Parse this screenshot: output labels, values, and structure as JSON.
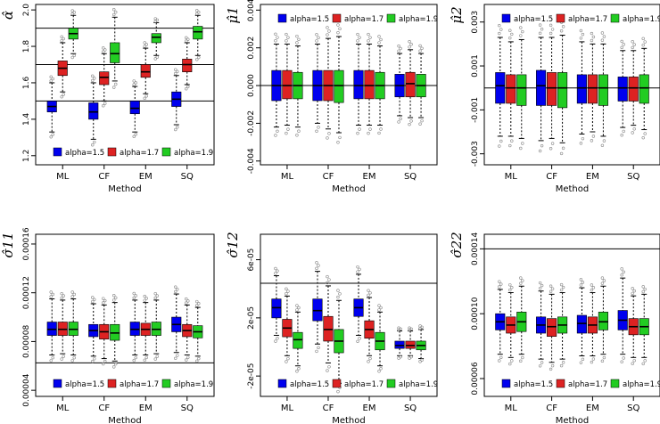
{
  "colors": {
    "s1": "#0000ee",
    "s2": "#dd2222",
    "s3": "#22cc22",
    "axis": "#000000",
    "whisker": "#000000",
    "outlier": "#888888"
  },
  "chart_data": [
    {
      "type": "box",
      "ylabel": "α̂",
      "xlabel": "Method",
      "categories": [
        "ML",
        "CF",
        "EM",
        "SQ"
      ],
      "yticks": [
        "1.2",
        "1.4",
        "1.6",
        "1.8",
        "2.0"
      ],
      "ylim": [
        1.15,
        2.03
      ],
      "hlines": [
        1.5,
        1.7,
        1.9
      ],
      "legend": [
        "alpha=1.5",
        "alpha=1.7",
        "alpha=1.9"
      ],
      "legend_position": "bottom",
      "series": [
        {
          "name": "alpha=1.5",
          "boxes": [
            [
              1.33,
              1.44,
              1.47,
              1.5,
              1.6
            ],
            [
              1.29,
              1.4,
              1.44,
              1.49,
              1.6
            ],
            [
              1.33,
              1.43,
              1.46,
              1.5,
              1.58
            ],
            [
              1.37,
              1.47,
              1.51,
              1.55,
              1.64
            ]
          ]
        },
        {
          "name": "alpha=1.7",
          "boxes": [
            [
              1.55,
              1.64,
              1.68,
              1.72,
              1.82
            ],
            [
              1.5,
              1.59,
              1.63,
              1.66,
              1.76
            ],
            [
              1.54,
              1.63,
              1.66,
              1.7,
              1.79
            ],
            [
              1.59,
              1.66,
              1.7,
              1.73,
              1.82
            ]
          ]
        },
        {
          "name": "alpha=1.9",
          "boxes": [
            [
              1.76,
              1.84,
              1.87,
              1.9,
              1.97
            ],
            [
              1.61,
              1.71,
              1.76,
              1.82,
              1.96
            ],
            [
              1.75,
              1.82,
              1.85,
              1.87,
              1.93
            ],
            [
              1.75,
              1.84,
              1.88,
              1.91,
              1.97
            ]
          ]
        }
      ]
    },
    {
      "type": "box",
      "ylabel": "μ̂1",
      "xlabel": "Method",
      "categories": [
        "ML",
        "CF",
        "EM",
        "SQ"
      ],
      "yticks": [
        "-0.004",
        "-0.002",
        "0.000",
        "0.002",
        "0.004"
      ],
      "ylim": [
        -0.0042,
        0.0043
      ],
      "hlines": [
        0.0
      ],
      "legend": [
        "alpha=1.5",
        "alpha=1.7",
        "alpha=1.9"
      ],
      "legend_position": "top",
      "series": [
        {
          "name": "alpha=1.5",
          "boxes": [
            [
              -0.0022,
              -0.0008,
              0.0,
              0.0008,
              0.0022
            ],
            [
              -0.002,
              -0.0008,
              0.0,
              0.0008,
              0.0022
            ],
            [
              -0.0021,
              -0.0007,
              0.0,
              0.0008,
              0.0022
            ],
            [
              -0.0016,
              -0.0006,
              0.0,
              0.0006,
              0.0017
            ]
          ]
        },
        {
          "name": "alpha=1.7",
          "boxes": [
            [
              -0.0021,
              -0.0007,
              0.0,
              0.0008,
              0.0022
            ],
            [
              -0.0023,
              -0.0008,
              0.0,
              0.0008,
              0.0025
            ],
            [
              -0.0021,
              -0.0007,
              0.0,
              0.0008,
              0.0022
            ],
            [
              -0.0017,
              -0.0006,
              0.0001,
              0.0007,
              0.0019
            ]
          ]
        },
        {
          "name": "alpha=1.9",
          "boxes": [
            [
              -0.0022,
              -0.0007,
              0.0,
              0.0007,
              0.0021
            ],
            [
              -0.0025,
              -0.0009,
              0.0,
              0.0008,
              0.0026
            ],
            [
              -0.0021,
              -0.0007,
              0.0,
              0.0007,
              0.0021
            ],
            [
              -0.0017,
              -0.0006,
              0.0,
              0.0006,
              0.0017
            ]
          ]
        }
      ]
    },
    {
      "type": "box",
      "ylabel": "μ̂2",
      "xlabel": "Method",
      "categories": [
        "ML",
        "CF",
        "EM",
        "SQ"
      ],
      "yticks": [
        "-0.003",
        "-0.001",
        "0.001",
        "0.003"
      ],
      "ylim": [
        -0.0035,
        0.0038
      ],
      "hlines": [
        0.0
      ],
      "legend": [
        "alpha=1.5",
        "alpha=1.7",
        "alpha=1.9"
      ],
      "legend_position": "top",
      "series": [
        {
          "name": "alpha=1.5",
          "boxes": [
            [
              -0.0022,
              -0.0007,
              0.0001,
              0.0007,
              0.0023
            ],
            [
              -0.0024,
              -0.0008,
              0.0001,
              0.0008,
              0.0023
            ],
            [
              -0.0021,
              -0.0007,
              0.0,
              0.0006,
              0.0021
            ],
            [
              -0.0018,
              -0.0006,
              0.0,
              0.0005,
              0.0017
            ]
          ]
        },
        {
          "name": "alpha=1.7",
          "boxes": [
            [
              -0.0022,
              -0.0007,
              0.0,
              0.0006,
              0.0021
            ],
            [
              -0.0023,
              -0.0008,
              0.0,
              0.0007,
              0.0023
            ],
            [
              -0.002,
              -0.0007,
              0.0,
              0.0006,
              0.002
            ],
            [
              -0.0017,
              -0.0006,
              0.0,
              0.0005,
              0.0017
            ]
          ]
        },
        {
          "name": "alpha=1.9",
          "boxes": [
            [
              -0.0023,
              -0.0008,
              0.0,
              0.0006,
              0.0022
            ],
            [
              -0.0025,
              -0.0009,
              0.0,
              0.0007,
              0.0024
            ],
            [
              -0.0022,
              -0.0008,
              0.0,
              0.0006,
              0.002
            ],
            [
              -0.0019,
              -0.0007,
              0.0,
              0.0006,
              0.0018
            ]
          ]
        }
      ]
    },
    {
      "type": "box",
      "ylabel": "σ̂11",
      "xlabel": "Method",
      "categories": [
        "ML",
        "CF",
        "EM",
        "SQ"
      ],
      "yticks": [
        "0.00004",
        "0.00008",
        "0.00012",
        "0.00016"
      ],
      "ylim": [
        3.5e-05,
        0.000168
      ],
      "hlines": [
        6.25e-05
      ],
      "legend": [
        "alpha=1.5",
        "alpha=1.7",
        "alpha=1.9"
      ],
      "legend_position": "bottom",
      "series": [
        {
          "name": "alpha=1.5",
          "boxes": [
            [
              6.9e-05,
              8.5e-05,
              9e-05,
              9.6e-05,
              0.000115
            ],
            [
              6.8e-05,
              8.4e-05,
              8.9e-05,
              9.4e-05,
              0.000111
            ],
            [
              6.9e-05,
              8.5e-05,
              9e-05,
              9.6e-05,
              0.000114
            ],
            [
              7.1e-05,
              8.8e-05,
              9.4e-05,
              0.0001,
              0.000119
            ]
          ]
        },
        {
          "name": "alpha=1.7",
          "boxes": [
            [
              7e-05,
              8.5e-05,
              9e-05,
              9.6e-05,
              0.000114
            ],
            [
              6.6e-05,
              8.2e-05,
              8.8e-05,
              9.4e-05,
              0.00011
            ],
            [
              6.9e-05,
              8.5e-05,
              9e-05,
              9.5e-05,
              0.000112
            ],
            [
              6.9e-05,
              8.4e-05,
              8.9e-05,
              9.4e-05,
              0.00011
            ]
          ]
        },
        {
          "name": "alpha=1.9",
          "boxes": [
            [
              6.9e-05,
              8.5e-05,
              9e-05,
              9.6e-05,
              0.000115
            ],
            [
              6.4e-05,
              8.1e-05,
              8.7e-05,
              9.4e-05,
              0.000112
            ],
            [
              7e-05,
              8.5e-05,
              9e-05,
              9.6e-05,
              0.000114
            ],
            [
              6.8e-05,
              8.3e-05,
              8.8e-05,
              9.3e-05,
              0.000108
            ]
          ]
        }
      ]
    },
    {
      "type": "box",
      "ylabel": "σ̂12",
      "xlabel": "Method",
      "categories": [
        "ML",
        "CF",
        "EM",
        "SQ"
      ],
      "yticks": [
        "-2e-05",
        "2e-05",
        "6e-05"
      ],
      "ylim": [
        -3.4e-05,
        7.75e-05
      ],
      "hlines": [
        4.38e-05
      ],
      "legend": [
        "alpha=1.5",
        "alpha=1.7",
        "alpha=1.9"
      ],
      "legend_position": "bottom",
      "series": [
        {
          "name": "alpha=1.5",
          "boxes": [
            [
              8e-06,
              2e-05,
              2.7e-05,
              3.3e-05,
              4.9e-05
            ],
            [
              2e-06,
              1.8e-05,
              2.5e-05,
              3.3e-05,
              5.2e-05
            ],
            [
              8e-06,
              2.1e-05,
              2.7e-05,
              3.3e-05,
              5e-05
            ],
            [
              -6e-06,
              -1e-06,
              1e-06,
              4e-06,
              1.1e-05
            ]
          ]
        },
        {
          "name": "alpha=1.7",
          "boxes": [
            [
              -6e-06,
              7e-06,
              1.3e-05,
              1.9e-05,
              3.5e-05
            ],
            [
              -1.1e-05,
              4e-06,
              1.2e-05,
              2.1e-05,
              4.2e-05
            ],
            [
              -6e-06,
              6e-06,
              1.2e-05,
              1.8e-05,
              3.4e-05
            ],
            [
              -6e-06,
              -1e-06,
              1e-06,
              4e-06,
              1.1e-05
            ]
          ]
        },
        {
          "name": "alpha=1.9",
          "boxes": [
            [
              -1.3e-05,
              -1e-06,
              5e-06,
              1e-05,
              2.4e-05
            ],
            [
              -2.5e-05,
              -4e-06,
              4e-06,
              1.2e-05,
              3.2e-05
            ],
            [
              -1.3e-05,
              -2e-06,
              4e-06,
              1e-05,
              2.4e-05
            ],
            [
              -8e-06,
              -2e-06,
              1e-06,
              4e-06,
              1.2e-05
            ]
          ]
        }
      ]
    },
    {
      "type": "box",
      "ylabel": "σ̂22",
      "xlabel": "Method",
      "categories": [
        "ML",
        "CF",
        "EM",
        "SQ"
      ],
      "yticks": [
        "0.00006",
        "0.00010",
        "0.00014"
      ],
      "ylim": [
        4.9e-05,
        0.000149
      ],
      "hlines": [
        0.00014
      ],
      "legend": [
        "alpha=1.5",
        "alpha=1.7",
        "alpha=1.9"
      ],
      "legend_position": "bottom",
      "series": [
        {
          "name": "alpha=1.5",
          "boxes": [
            [
              7.5e-05,
              9e-05,
              9.5e-05,
              0.0001,
              0.000115
            ],
            [
              7.2e-05,
              8.8e-05,
              9.3e-05,
              9.8e-05,
              0.000114
            ],
            [
              7.4e-05,
              8.8e-05,
              9.4e-05,
              9.9e-05,
              0.000116
            ],
            [
              7.5e-05,
              9e-05,
              9.6e-05,
              0.000102,
              0.000122
            ]
          ]
        },
        {
          "name": "alpha=1.7",
          "boxes": [
            [
              7.3e-05,
              8.8e-05,
              9.3e-05,
              9.8e-05,
              0.000113
            ],
            [
              7e-05,
              8.6e-05,
              9.2e-05,
              9.7e-05,
              0.000112
            ],
            [
              7.4e-05,
              8.8e-05,
              9.3e-05,
              9.8e-05,
              0.000113
            ],
            [
              7.3e-05,
              8.7e-05,
              9.2e-05,
              9.7e-05,
              0.000111
            ]
          ]
        },
        {
          "name": "alpha=1.9",
          "boxes": [
            [
              7.5e-05,
              8.9e-05,
              9.5e-05,
              0.000101,
              0.000117
            ],
            [
              7.2e-05,
              8.8e-05,
              9.3e-05,
              9.8e-05,
              0.000113
            ],
            [
              7.5e-05,
              9e-05,
              9.5e-05,
              0.000101,
              0.000117
            ],
            [
              7.3e-05,
              8.7e-05,
              9.2e-05,
              9.7e-05,
              0.000112
            ]
          ]
        }
      ]
    }
  ]
}
